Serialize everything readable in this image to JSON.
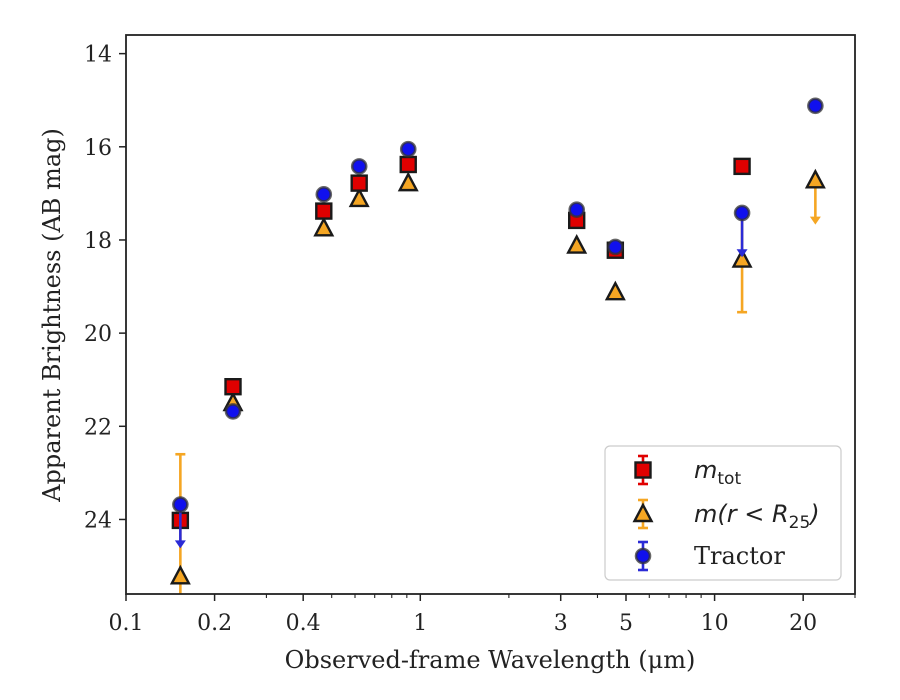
{
  "chart_data": {
    "type": "scatter",
    "xlabel": "Observed-frame Wavelength (μm)",
    "ylabel": "Apparent Brightness (AB mag)",
    "x_scale": "log",
    "xlim": [
      0.1,
      30
    ],
    "ylim": [
      25.6,
      13.6
    ],
    "y_inverted": true,
    "x_ticks": [
      0.1,
      0.2,
      0.4,
      1,
      3,
      5,
      10,
      20
    ],
    "x_tick_labels": [
      "0.1",
      "0.2",
      "0.4",
      "1",
      "3",
      "5",
      "10",
      "20"
    ],
    "y_ticks": [
      14,
      16,
      18,
      20,
      22,
      24
    ],
    "y_tick_labels": [
      "14",
      "16",
      "18",
      "20",
      "22",
      "24"
    ],
    "legend_position": "lower-right",
    "series": [
      {
        "name": "m_tot",
        "legend_main": "m",
        "legend_sub": "tot",
        "marker": "square",
        "color": "#e00000",
        "errcolor": "#e00000",
        "points": [
          {
            "x": 0.153,
            "y": 24.02
          },
          {
            "x": 0.231,
            "y": 21.15
          },
          {
            "x": 0.47,
            "y": 17.38
          },
          {
            "x": 0.62,
            "y": 16.78
          },
          {
            "x": 0.91,
            "y": 16.38
          },
          {
            "x": 3.4,
            "y": 17.58
          },
          {
            "x": 4.6,
            "y": 18.22
          },
          {
            "x": 12.4,
            "y": 16.42
          }
        ]
      },
      {
        "name": "m(r < R25)",
        "legend_main": "m(r < R",
        "legend_sub": "25",
        "legend_end": ")",
        "marker": "triangle",
        "color": "#f5a623",
        "errcolor": "#f5a623",
        "points": [
          {
            "x": 0.153,
            "y": 25.22,
            "yerr_low": 22.6,
            "yerr_high": 25.6
          },
          {
            "x": 0.231,
            "y": 21.5
          },
          {
            "x": 0.47,
            "y": 17.75
          },
          {
            "x": 0.62,
            "y": 17.12
          },
          {
            "x": 0.91,
            "y": 16.78
          },
          {
            "x": 3.4,
            "y": 18.12
          },
          {
            "x": 4.6,
            "y": 19.12
          },
          {
            "x": 12.4,
            "y": 18.42,
            "yerr_low": 17.4,
            "yerr_high": 19.55
          },
          {
            "x": 22.0,
            "y": 16.72,
            "upper_limit": true,
            "arrow_to": 17.65
          }
        ]
      },
      {
        "name": "Tractor",
        "legend_main": "Tractor",
        "marker": "circle",
        "color": "#1010ee",
        "errcolor": "#2b2bd6",
        "points": [
          {
            "x": 0.153,
            "y": 23.68,
            "upper_limit": true,
            "arrow_to": 24.6
          },
          {
            "x": 0.231,
            "y": 21.68
          },
          {
            "x": 0.47,
            "y": 17.02
          },
          {
            "x": 0.62,
            "y": 16.42
          },
          {
            "x": 0.91,
            "y": 16.05
          },
          {
            "x": 3.4,
            "y": 17.35
          },
          {
            "x": 4.6,
            "y": 18.15
          },
          {
            "x": 12.4,
            "y": 17.42,
            "upper_limit": true,
            "arrow_to": 18.35
          },
          {
            "x": 22.0,
            "y": 15.12
          }
        ]
      }
    ]
  }
}
